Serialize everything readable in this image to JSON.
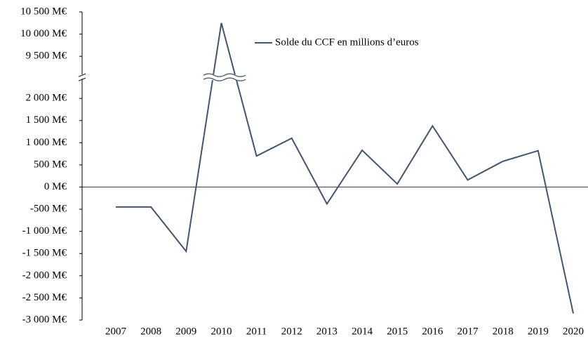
{
  "chart_data": {
    "type": "line",
    "categories": [
      "2007",
      "2008",
      "2009",
      "2010",
      "2011",
      "2012",
      "2013",
      "2014",
      "2015",
      "2016",
      "2017",
      "2018",
      "2019",
      "2020"
    ],
    "series": [
      {
        "name": "Solde du CCF en millions d’euros",
        "color": "#44546a",
        "values": [
          -450,
          -450,
          -1450,
          10250,
          700,
          1100,
          -380,
          830,
          70,
          1380,
          160,
          580,
          820,
          -2850
        ]
      }
    ],
    "ylim": [
      -3000,
      10500
    ],
    "yticks": [
      {
        "value": -3000,
        "label": "-3 000 M€"
      },
      {
        "value": -2500,
        "label": "-2 500 M€"
      },
      {
        "value": -2000,
        "label": "-2 000 M€"
      },
      {
        "value": -1500,
        "label": "-1 500 M€"
      },
      {
        "value": -1000,
        "label": "-1 000 M€"
      },
      {
        "value": -500,
        "label": "-500 M€"
      },
      {
        "value": 0,
        "label": "0 M€"
      },
      {
        "value": 500,
        "label": "500 M€"
      },
      {
        "value": 1000,
        "label": "1 000 M€"
      },
      {
        "value": 1500,
        "label": "1 500 M€"
      },
      {
        "value": 2000,
        "label": "2 000 M€"
      },
      {
        "value": 9500,
        "label": "9 500 M€"
      },
      {
        "value": 10000,
        "label": "10 000 M€"
      },
      {
        "value": 10500,
        "label": "10 500 M€"
      }
    ],
    "legend": "top-right"
  }
}
